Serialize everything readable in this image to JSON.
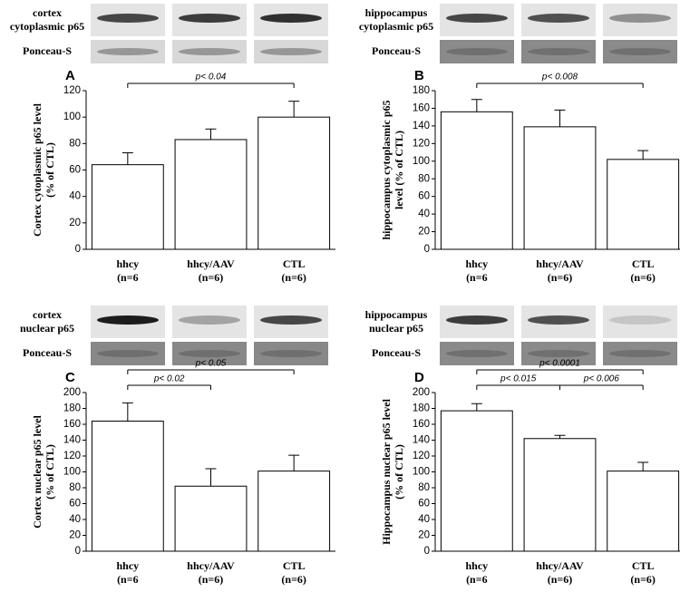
{
  "chart_data": [
    {
      "type": "bar",
      "panel": "A",
      "blot_labels": [
        "cortex",
        "cytoplasmic p65",
        "Ponceau-S"
      ],
      "ylabel": [
        "Cortex cytoplasmic p65 level",
        "(% of CTL)"
      ],
      "categories": [
        "hhcy",
        "hhcy/AAV",
        "CTL"
      ],
      "n_labels": [
        "(n=6",
        "(n=6)",
        "(n=6)"
      ],
      "values": [
        64,
        83,
        100
      ],
      "errors": [
        9,
        8,
        12
      ],
      "color": "#ffffff",
      "ylim": [
        0,
        120
      ],
      "yticks": [
        0,
        20,
        40,
        60,
        80,
        100,
        120
      ],
      "comparisons": [
        {
          "between": [
            0,
            2
          ],
          "label": "p< 0.04"
        }
      ]
    },
    {
      "type": "bar",
      "panel": "B",
      "blot_labels": [
        "hippocampus",
        "cytoplasmic p65",
        "Ponceau-S"
      ],
      "ylabel": [
        "hippocampus cytoplasmic p65",
        "level (% of CTL)"
      ],
      "categories": [
        "hhcy",
        "hhcy/AAV",
        "CTL"
      ],
      "n_labels": [
        "(n=6",
        "(n=6)",
        "(n=6)"
      ],
      "values": [
        156,
        139,
        102
      ],
      "errors": [
        14,
        19,
        10
      ],
      "color": "#ffffff",
      "ylim": [
        0,
        180
      ],
      "yticks": [
        0,
        20,
        40,
        60,
        80,
        100,
        120,
        140,
        160,
        180
      ],
      "comparisons": [
        {
          "between": [
            0,
            2
          ],
          "label": "p< 0.008"
        }
      ]
    },
    {
      "type": "bar",
      "panel": "C",
      "blot_labels": [
        "cortex",
        "nuclear p65",
        "Ponceau-S"
      ],
      "ylabel": [
        "Cortex nuclear p65 level",
        "(% of CTL)"
      ],
      "categories": [
        "hhcy",
        "hhcy/AAV",
        "CTL"
      ],
      "n_labels": [
        "(n=6",
        "(n=6)",
        "(n=6)"
      ],
      "values": [
        164,
        82,
        101
      ],
      "errors": [
        23,
        22,
        20
      ],
      "color": "#ffffff",
      "ylim": [
        0,
        200
      ],
      "yticks": [
        0,
        20,
        40,
        60,
        80,
        100,
        120,
        140,
        160,
        180,
        200
      ],
      "comparisons": [
        {
          "between": [
            0,
            2
          ],
          "label": "p< 0.05"
        },
        {
          "between": [
            0,
            1
          ],
          "label": "p< 0.02"
        }
      ]
    },
    {
      "type": "bar",
      "panel": "D",
      "blot_labels": [
        "hippocampus",
        "nuclear p65",
        "Ponceau-S"
      ],
      "ylabel": [
        "Hippocampus nuclear p65 level",
        "(% of CTL)"
      ],
      "categories": [
        "hhcy",
        "hhcy/AAV",
        "CTL"
      ],
      "n_labels": [
        "(n=6",
        "(n=6)",
        "(n=6)"
      ],
      "values": [
        177,
        142,
        101
      ],
      "errors": [
        9,
        4,
        11
      ],
      "color": "#ffffff",
      "ylim": [
        0,
        200
      ],
      "yticks": [
        0,
        20,
        40,
        60,
        80,
        100,
        120,
        140,
        160,
        180,
        200
      ],
      "comparisons": [
        {
          "between": [
            0,
            2
          ],
          "label": "p< 0.0001"
        },
        {
          "between": [
            0,
            1
          ],
          "label": "p< 0.015"
        },
        {
          "between": [
            1,
            2
          ],
          "label": "p< 0.006"
        }
      ]
    }
  ]
}
